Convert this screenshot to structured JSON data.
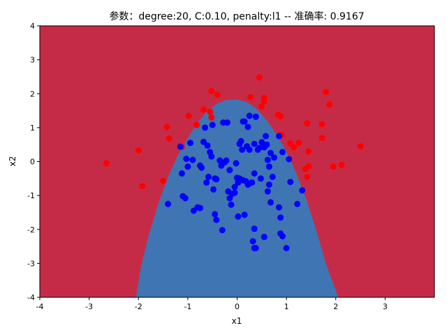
{
  "chart_data": {
    "type": "scatter",
    "title": "参数：degree:20, C:0.10, penalty:l1 -- 准确率: 0.9167",
    "xlabel": "x1",
    "ylabel": "x2",
    "xlim": [
      -4,
      4
    ],
    "ylim": [
      -4,
      4
    ],
    "xticks": [
      "-4",
      "-3",
      "-2",
      "-1",
      "0",
      "1",
      "2",
      "3"
    ],
    "yticks": [
      "-4",
      "-3",
      "-2",
      "-1",
      "0",
      "1",
      "2",
      "3",
      "4"
    ],
    "grid": false,
    "background_color": "#c52b47",
    "decision_region_color": "#3f75b3",
    "decision_region": {
      "x": [
        -2.05,
        -1.95,
        -1.8,
        -1.6,
        -1.4,
        -1.2,
        -1.0,
        -0.8,
        -0.6,
        -0.4,
        -0.2,
        0.0,
        0.2,
        0.4,
        0.6,
        0.8,
        1.0,
        1.2,
        1.4,
        1.6,
        1.8,
        1.95,
        2.05
      ],
      "y": [
        -4.0,
        -3.1,
        -2.2,
        -1.25,
        -0.45,
        0.2,
        0.7,
        1.15,
        1.5,
        1.72,
        1.82,
        1.83,
        1.75,
        1.55,
        1.22,
        0.8,
        0.3,
        -0.35,
        -1.1,
        -2.0,
        -3.0,
        -3.6,
        -4.0
      ]
    },
    "series": [
      {
        "color": "#ff0000",
        "points": [
          [
            -2.65,
            -0.05
          ],
          [
            -2.0,
            0.33
          ],
          [
            -1.92,
            -0.72
          ],
          [
            -1.5,
            -0.57
          ],
          [
            -1.42,
            1.02
          ],
          [
            -1.38,
            0.68
          ],
          [
            -1.12,
            0.43
          ],
          [
            -0.98,
            1.35
          ],
          [
            -0.82,
            1.08
          ],
          [
            -0.68,
            1.53
          ],
          [
            -0.55,
            1.47
          ],
          [
            -0.52,
            1.3
          ],
          [
            -0.52,
            2.08
          ],
          [
            -0.4,
            1.97
          ],
          [
            0.27,
            1.9
          ],
          [
            0.45,
            2.48
          ],
          [
            0.5,
            1.62
          ],
          [
            0.55,
            1.88
          ],
          [
            0.55,
            1.78
          ],
          [
            0.83,
            1.38
          ],
          [
            0.88,
            1.33
          ],
          [
            0.9,
            0.78
          ],
          [
            1.08,
            0.53
          ],
          [
            1.15,
            0.42
          ],
          [
            1.25,
            0.55
          ],
          [
            1.38,
            -0.22
          ],
          [
            1.42,
            1.13
          ],
          [
            1.45,
            0.3
          ],
          [
            1.45,
            -0.14
          ],
          [
            1.42,
            -0.45
          ],
          [
            1.72,
            1.1
          ],
          [
            1.72,
            0.7
          ],
          [
            1.8,
            2.05
          ],
          [
            1.87,
            1.68
          ],
          [
            1.95,
            -0.15
          ],
          [
            2.12,
            -0.1
          ],
          [
            2.5,
            0.45
          ]
        ]
      },
      {
        "color": "#0000ff",
        "points": [
          [
            -1.4,
            -1.25
          ],
          [
            -1.15,
            0.44
          ],
          [
            -1.12,
            -0.35
          ],
          [
            -1.1,
            -1.02
          ],
          [
            -1.05,
            -1.08
          ],
          [
            -1.03,
            0.08
          ],
          [
            -1.0,
            -0.15
          ],
          [
            -0.95,
            0.55
          ],
          [
            -0.9,
            0.05
          ],
          [
            -0.88,
            -1.45
          ],
          [
            -0.8,
            -1.35
          ],
          [
            -0.75,
            -1.37
          ],
          [
            -0.75,
            -0.12
          ],
          [
            -0.72,
            -0.18
          ],
          [
            -0.68,
            0.58
          ],
          [
            -0.65,
            1.0
          ],
          [
            -0.62,
            -0.62
          ],
          [
            -0.6,
            0.47
          ],
          [
            -0.58,
            -0.45
          ],
          [
            -0.55,
            0.28
          ],
          [
            -0.52,
            0.15
          ],
          [
            -0.5,
            1.08
          ],
          [
            -0.48,
            -0.82
          ],
          [
            -0.45,
            -0.5
          ],
          [
            -0.45,
            -1.55
          ],
          [
            -0.42,
            -0.52
          ],
          [
            -0.42,
            -1.72
          ],
          [
            -0.35,
            0.03
          ],
          [
            -0.32,
            -0.12
          ],
          [
            -0.3,
            -2.02
          ],
          [
            -0.28,
            1.15
          ],
          [
            -0.25,
            -0.02
          ],
          [
            -0.22,
            0.03
          ],
          [
            -0.2,
            1.15
          ],
          [
            -0.18,
            -0.88
          ],
          [
            -0.15,
            -0.25
          ],
          [
            -0.15,
            -1.08
          ],
          [
            -0.12,
            -1.27
          ],
          [
            -0.1,
            -0.95
          ],
          [
            -0.05,
            -0.92
          ],
          [
            -0.05,
            -0.75
          ],
          [
            -0.02,
            -0.05
          ],
          [
            0.0,
            -0.48
          ],
          [
            0.02,
            -0.62
          ],
          [
            0.02,
            -1.62
          ],
          [
            0.05,
            0.52
          ],
          [
            0.05,
            -0.5
          ],
          [
            0.08,
            0.6
          ],
          [
            0.1,
            0.35
          ],
          [
            0.12,
            -0.55
          ],
          [
            0.12,
            1.18
          ],
          [
            0.15,
            1.18
          ],
          [
            0.15,
            -1.57
          ],
          [
            0.18,
            -0.58
          ],
          [
            0.2,
            0.45
          ],
          [
            0.22,
            -0.68
          ],
          [
            0.22,
            1.02
          ],
          [
            0.25,
            0.35
          ],
          [
            0.25,
            1.35
          ],
          [
            0.3,
            -0.62
          ],
          [
            0.32,
            -2.35
          ],
          [
            0.35,
            0.52
          ],
          [
            0.35,
            -0.35
          ],
          [
            0.35,
            -1.98
          ],
          [
            0.35,
            -2.55
          ],
          [
            0.38,
            -2.55
          ],
          [
            0.38,
            1.32
          ],
          [
            0.42,
            0.35
          ],
          [
            0.45,
            0.4
          ],
          [
            0.48,
            -0.5
          ],
          [
            0.5,
            0.57
          ],
          [
            0.55,
            -2.22
          ],
          [
            0.55,
            0.42
          ],
          [
            0.58,
            0.75
          ],
          [
            0.6,
            0.5
          ],
          [
            0.62,
            0.05
          ],
          [
            0.62,
            -0.88
          ],
          [
            0.65,
            -0.15
          ],
          [
            0.65,
            -0.68
          ],
          [
            0.68,
            -1.2
          ],
          [
            0.68,
            0.25
          ],
          [
            0.72,
            -0.45
          ],
          [
            0.75,
            0.12
          ],
          [
            0.85,
            0.75
          ],
          [
            0.85,
            -1.35
          ],
          [
            0.88,
            -1.65
          ],
          [
            0.88,
            -2.12
          ],
          [
            0.92,
            0.28
          ],
          [
            0.92,
            -2.2
          ],
          [
            1.0,
            -2.55
          ],
          [
            1.05,
            0.07
          ],
          [
            1.08,
            -0.6
          ],
          [
            1.22,
            -1.25
          ],
          [
            1.32,
            -0.85
          ]
        ]
      }
    ]
  }
}
